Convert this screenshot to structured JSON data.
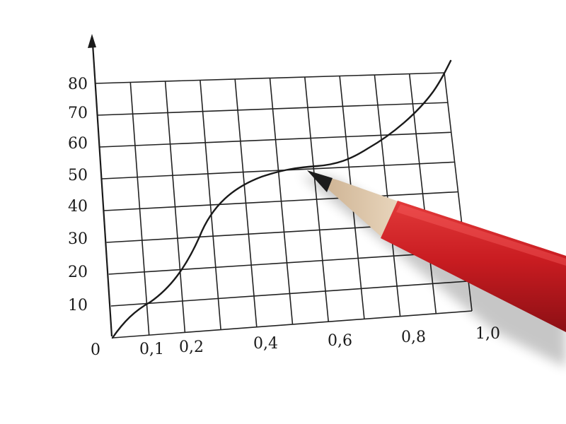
{
  "photo": {
    "subject": "hand-drawn graph on paper with a red pencil",
    "paper_color": "#ffffff",
    "ink_color": "#1a1a1a",
    "pencil_color": "#c41a1f"
  },
  "graph": {
    "origin_label": "0",
    "y_tick_labels": [
      "10",
      "20",
      "30",
      "40",
      "50",
      "60",
      "70",
      "80"
    ],
    "x_tick_labels": [
      "0,1",
      "0,2",
      "0,4",
      "0,6",
      "0,8",
      "1,0"
    ]
  }
}
